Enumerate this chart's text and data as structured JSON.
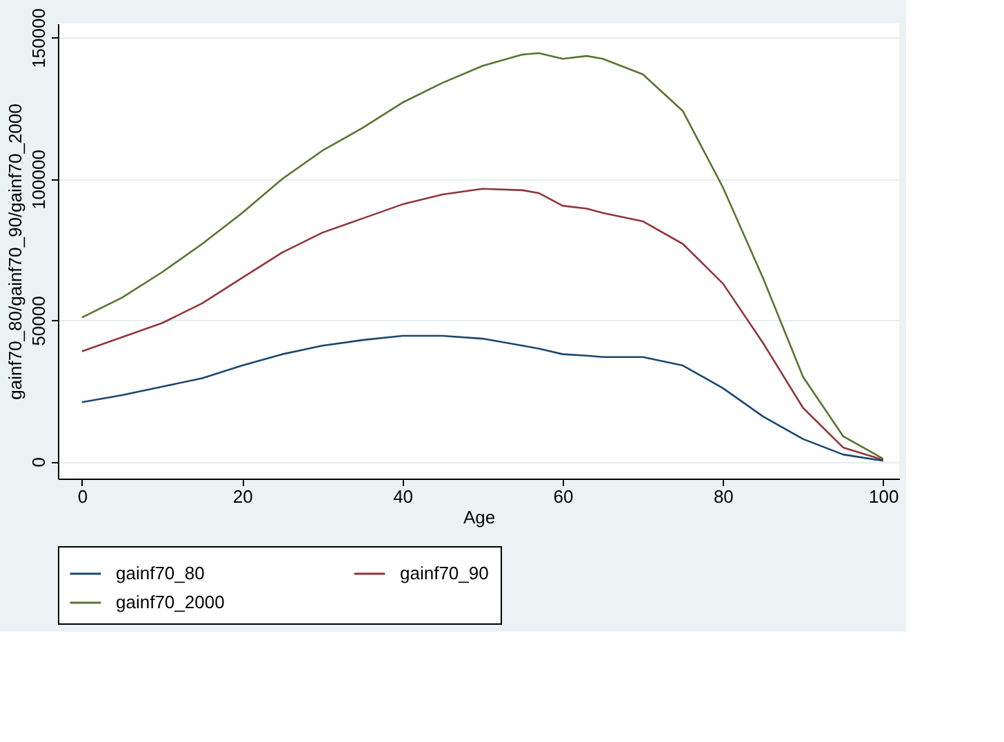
{
  "chart_data": {
    "type": "line",
    "xlabel": "Age",
    "ylabel": "gainf70_80/gainf70_90/gainf70_2000",
    "x": [
      0,
      5,
      10,
      15,
      20,
      25,
      30,
      35,
      40,
      45,
      50,
      55,
      57,
      60,
      63,
      65,
      70,
      75,
      80,
      85,
      90,
      95,
      100
    ],
    "series": [
      {
        "name": "gainf70_80",
        "color": "#1a476f",
        "values": [
          21000,
          23500,
          26500,
          29500,
          34000,
          38000,
          41000,
          43000,
          44500,
          44500,
          43500,
          41000,
          40000,
          38000,
          37500,
          37000,
          37000,
          34000,
          26000,
          16000,
          8000,
          2500,
          300
        ]
      },
      {
        "name": "gainf70_90",
        "color": "#90353b",
        "values": [
          39000,
          44000,
          49000,
          56000,
          65000,
          74000,
          81000,
          86000,
          91000,
          94500,
          96500,
          96000,
          95000,
          90500,
          89500,
          88000,
          85000,
          77000,
          63000,
          42000,
          19000,
          5000,
          600
        ]
      },
      {
        "name": "gainf70_2000",
        "color": "#55752f",
        "values": [
          51000,
          58000,
          67000,
          77000,
          88000,
          100000,
          110000,
          118000,
          127000,
          134000,
          140000,
          144000,
          144500,
          142500,
          143500,
          142500,
          137000,
          124000,
          97000,
          65000,
          30000,
          9000,
          1000
        ]
      }
    ],
    "xlim": [
      -3,
      102
    ],
    "xticks": [
      0,
      20,
      40,
      60,
      80,
      100
    ],
    "ylim": [
      -6000,
      155000
    ],
    "yticks": [
      0,
      50000,
      100000,
      150000
    ],
    "grid": "y",
    "legend": "bottom",
    "marker": "none",
    "line_style": "solid"
  }
}
